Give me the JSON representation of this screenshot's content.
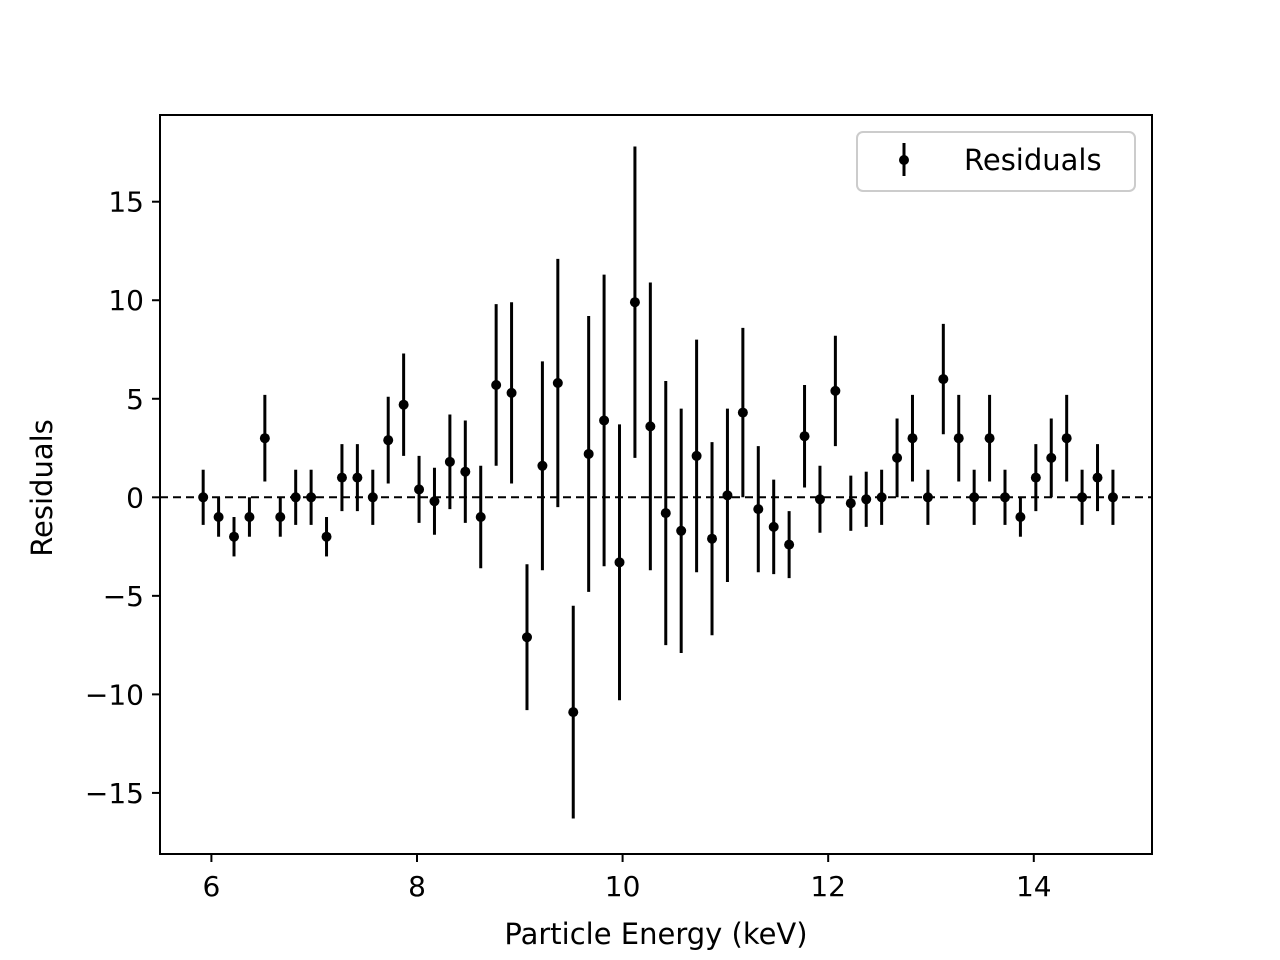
{
  "chart_data": {
    "type": "scatter",
    "title": "",
    "xlabel": "Particle Energy (keV)",
    "ylabel": "Residuals",
    "xlim": [
      5.5,
      15.15
    ],
    "ylim": [
      -18.1,
      19.4
    ],
    "xticks": [
      6,
      8,
      10,
      12,
      14
    ],
    "xtick_labels": [
      "6",
      "8",
      "10",
      "12",
      "14"
    ],
    "yticks": [
      -15,
      -10,
      -5,
      0,
      5,
      10,
      15
    ],
    "ytick_labels": [
      "−15",
      "−10",
      "−5",
      "0",
      "5",
      "10",
      "15"
    ],
    "grid": false,
    "legend_position": "top-right",
    "reference_line": {
      "y": 0,
      "style": "dashed"
    },
    "colors": {
      "points": "#000000",
      "errorbars": "#000000",
      "axes": "#000000"
    },
    "series": [
      {
        "name": "Residuals",
        "x": [
          5.92,
          6.07,
          6.22,
          6.37,
          6.52,
          6.67,
          6.82,
          6.97,
          7.12,
          7.27,
          7.42,
          7.57,
          7.72,
          7.87,
          8.02,
          8.17,
          8.32,
          8.47,
          8.62,
          8.77,
          8.92,
          9.07,
          9.22,
          9.37,
          9.52,
          9.67,
          9.82,
          9.97,
          10.12,
          10.27,
          10.42,
          10.57,
          10.72,
          10.87,
          11.02,
          11.17,
          11.32,
          11.47,
          11.62,
          11.77,
          11.92,
          12.07,
          12.22,
          12.37,
          12.52,
          12.67,
          12.82,
          12.97,
          13.12,
          13.27,
          13.42,
          13.57,
          13.72,
          13.87,
          14.02,
          14.17,
          14.32,
          14.47,
          14.62,
          14.77
        ],
        "y": [
          0.0,
          -1.0,
          -2.0,
          -1.0,
          3.0,
          -1.0,
          0.0,
          0.0,
          -2.0,
          1.0,
          1.0,
          0.0,
          2.9,
          4.7,
          0.4,
          -0.2,
          1.8,
          1.3,
          -1.0,
          5.7,
          5.3,
          -7.1,
          1.6,
          5.8,
          -10.9,
          2.2,
          3.9,
          -3.3,
          9.9,
          3.6,
          -0.8,
          -1.7,
          2.1,
          -2.1,
          0.1,
          4.3,
          -0.6,
          -1.5,
          -2.4,
          3.1,
          -0.1,
          5.4,
          -0.3,
          -0.1,
          0.0,
          2.0,
          3.0,
          0.0,
          6.0,
          3.0,
          0.0,
          3.0,
          0.0,
          -1.0,
          1.0,
          2.0,
          3.0,
          0.0,
          1.0,
          0.0
        ],
        "yerr": [
          1.4,
          1.0,
          1.0,
          1.0,
          2.2,
          1.0,
          1.4,
          1.4,
          1.0,
          1.7,
          1.7,
          1.4,
          2.2,
          2.6,
          1.7,
          1.7,
          2.4,
          2.6,
          2.6,
          4.1,
          4.6,
          3.7,
          5.3,
          6.3,
          5.4,
          7.0,
          7.4,
          7.0,
          7.9,
          7.3,
          6.7,
          6.2,
          5.9,
          4.9,
          4.4,
          4.3,
          3.2,
          2.4,
          1.7,
          2.6,
          1.7,
          2.8,
          1.4,
          1.4,
          1.4,
          2.0,
          2.2,
          1.4,
          2.8,
          2.2,
          1.4,
          2.2,
          1.4,
          1.0,
          1.7,
          2.0,
          2.2,
          1.4,
          1.7,
          1.4
        ]
      }
    ]
  }
}
